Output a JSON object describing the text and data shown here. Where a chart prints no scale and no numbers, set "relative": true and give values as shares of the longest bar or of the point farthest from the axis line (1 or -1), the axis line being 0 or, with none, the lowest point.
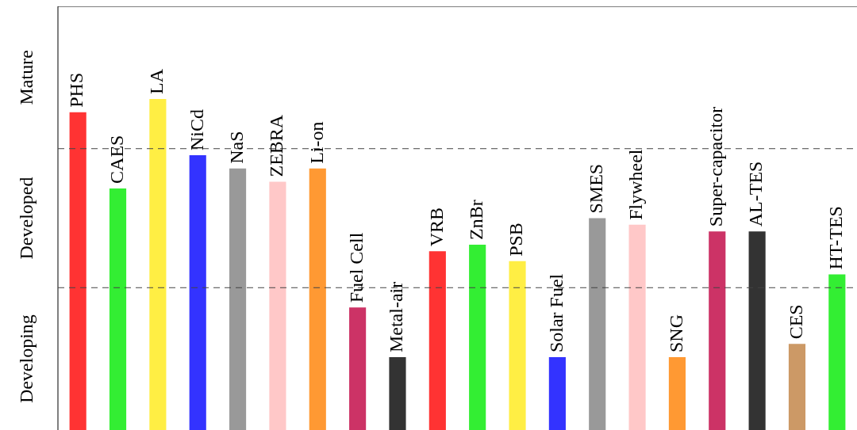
{
  "chart_data": {
    "type": "bar",
    "relative": true,
    "categories": [
      "PHS",
      "CAES",
      "LA",
      "NiCd",
      "NaS",
      "ZEBRA",
      "Li-on",
      "Fuel Cell",
      "Metal-air",
      "VRB",
      "ZnBr",
      "PSB",
      "Solar Fuel",
      "SMES",
      "Flywheel",
      "SNG",
      "Super-capacitor",
      "AL-TES",
      "CES",
      "HT-TES"
    ],
    "values": [
      0.96,
      0.73,
      1,
      0.83,
      0.79,
      0.75,
      0.79,
      0.37,
      0.22,
      0.54,
      0.56,
      0.51,
      0.22,
      0.64,
      0.62,
      0.22,
      0.6,
      0.6,
      0.26,
      0.47
    ],
    "colors": [
      "#ff3333",
      "#33ee33",
      "#ffee44",
      "#3333ff",
      "#999999",
      "#ffc8c8",
      "#ff9933",
      "#cc3366",
      "#333333",
      "#ff3333",
      "#33ee33",
      "#ffee44",
      "#3333ff",
      "#999999",
      "#ffc8c8",
      "#ff9933",
      "#cc3366",
      "#333333",
      "#cc9966",
      "#33ee33"
    ],
    "annotations": [
      "Mature",
      "Developed",
      "Developing"
    ],
    "ref_lines": [
      {
        "axis": "y",
        "value": 0.43,
        "line_style": "dashed"
      },
      {
        "axis": "y",
        "value": 0.85,
        "line_style": "dashed"
      }
    ],
    "legend": false
  }
}
